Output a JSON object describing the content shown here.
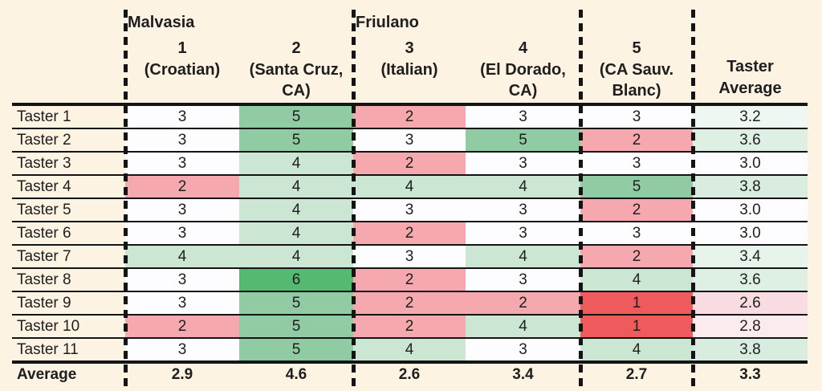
{
  "page": {
    "background_color": "#FCF3E2",
    "text_color": "#1E1E1E",
    "border_color": "#141414"
  },
  "chart_data": {
    "type": "table",
    "description": "Wine tasting scores heat-mapped table",
    "groups": [
      {
        "label": "Malvasia",
        "columns": [
          1,
          2
        ]
      },
      {
        "label": "Friulano",
        "columns": [
          3,
          4
        ]
      }
    ],
    "columns": [
      {
        "number": "1",
        "name": "(Croatian)"
      },
      {
        "number": "2",
        "name": "(Santa Cruz, CA)"
      },
      {
        "number": "3",
        "name": "(Italian)"
      },
      {
        "number": "4",
        "name": "(El Dorado, CA)"
      },
      {
        "number": "5",
        "name": "(CA Sauv. Blanc)"
      }
    ],
    "average_column_label": "Taster Average",
    "rows": [
      {
        "label": "Taster 1",
        "scores": [
          3,
          5,
          2,
          3,
          3
        ],
        "average": "3.2"
      },
      {
        "label": "Taster 2",
        "scores": [
          3,
          5,
          3,
          5,
          2
        ],
        "average": "3.6"
      },
      {
        "label": "Taster 3",
        "scores": [
          3,
          4,
          2,
          3,
          3
        ],
        "average": "3.0"
      },
      {
        "label": "Taster 4",
        "scores": [
          2,
          4,
          4,
          4,
          5
        ],
        "average": "3.8"
      },
      {
        "label": "Taster 5",
        "scores": [
          3,
          4,
          3,
          3,
          2
        ],
        "average": "3.0"
      },
      {
        "label": "Taster 6",
        "scores": [
          3,
          4,
          2,
          3,
          3
        ],
        "average": "3.0"
      },
      {
        "label": "Taster 7",
        "scores": [
          4,
          4,
          3,
          4,
          2
        ],
        "average": "3.4"
      },
      {
        "label": "Taster 8",
        "scores": [
          3,
          6,
          2,
          3,
          4
        ],
        "average": "3.6"
      },
      {
        "label": "Taster 9",
        "scores": [
          3,
          5,
          2,
          2,
          1
        ],
        "average": "2.6"
      },
      {
        "label": "Taster 10",
        "scores": [
          2,
          5,
          2,
          4,
          1
        ],
        "average": "2.8"
      },
      {
        "label": "Taster 11",
        "scores": [
          3,
          5,
          4,
          3,
          4
        ],
        "average": "3.8"
      }
    ],
    "footer": {
      "label": "Average",
      "column_averages": [
        "2.9",
        "4.6",
        "2.6",
        "3.4",
        "2.7"
      ],
      "overall_average": "3.3"
    }
  },
  "colors": {
    "score_fill": {
      "1": "#EF5A5D",
      "2": "#F5A8AD",
      "3": "#FDFCFE",
      "4": "#CBE7D3",
      "5": "#90CBA3",
      "6": "#55B971"
    },
    "average_fill": {
      "2.6": "#F8DCE1",
      "2.8": "#FBEAEE",
      "3.0": "#FDFCFE",
      "3.2": "#EFF7F2",
      "3.4": "#E7F4EB",
      "3.6": "#DEF0E4",
      "3.8": "#D8EDDF"
    }
  }
}
